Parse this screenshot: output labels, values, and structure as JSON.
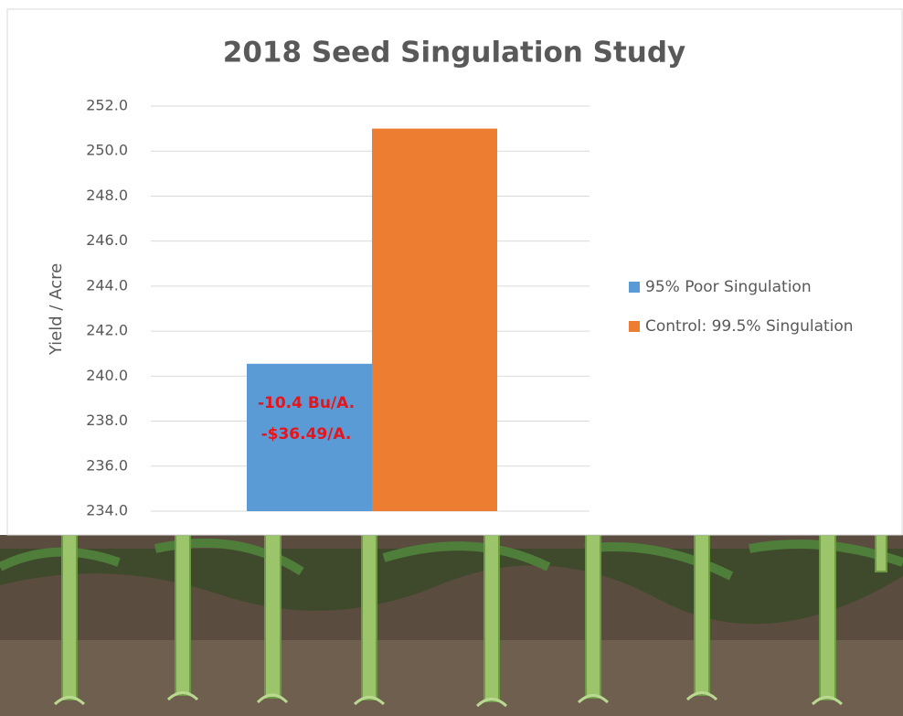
{
  "chart_data": {
    "type": "bar",
    "title": "2018 Seed Singulation Study",
    "y_label": "Yield / Acre",
    "categories": [
      null
    ],
    "series": [
      {
        "name": "95% Poor Singulation",
        "color": "#5b9bd5",
        "values": [
          240.55
        ]
      },
      {
        "name": "Control: 99.5% Singulation",
        "color": "#ed7d31",
        "values": [
          251.0
        ]
      }
    ],
    "annotations": [
      "-10.4 Bu/A.",
      "-$36.49/A."
    ],
    "ylim": [
      234,
      252
    ],
    "yticks": [
      {
        "value": 234,
        "label": "234.0"
      },
      {
        "value": 236,
        "label": "236.0"
      },
      {
        "value": 238,
        "label": "238.0"
      },
      {
        "value": 240,
        "label": "240.0"
      },
      {
        "value": 242,
        "label": "242.0"
      },
      {
        "value": 244,
        "label": "244.0"
      },
      {
        "value": 246,
        "label": "246.0"
      },
      {
        "value": 248,
        "label": "248.0"
      },
      {
        "value": 250,
        "label": "250.0"
      },
      {
        "value": 252,
        "label": "252.0"
      }
    ],
    "grid": true,
    "legend": "right"
  }
}
